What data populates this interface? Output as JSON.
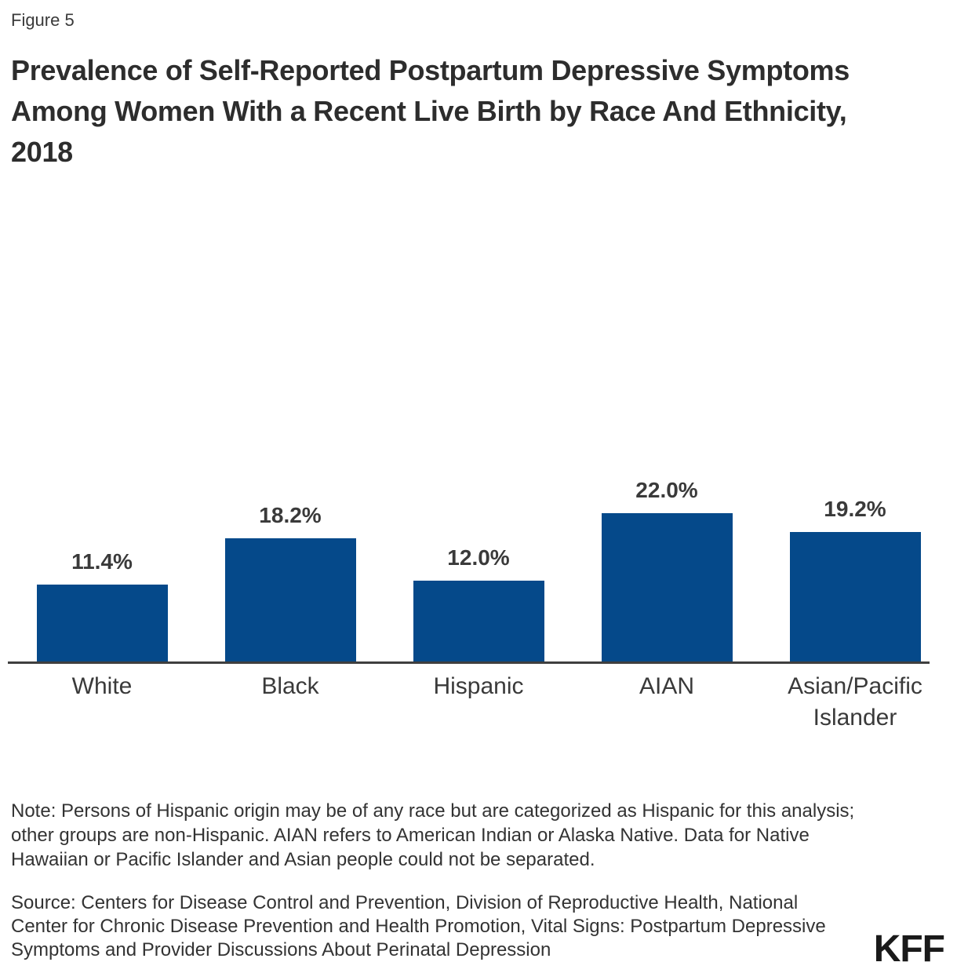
{
  "figure_label": "Figure 5",
  "title": "Prevalence of Self-Reported Postpartum Depressive Symptoms Among Women With a Recent Live Birth by Race And Ethnicity, 2018",
  "chart_data": {
    "type": "bar",
    "title": "Prevalence of Self-Reported Postpartum Depressive Symptoms Among Women With a Recent Live Birth by Race And Ethnicity, 2018",
    "categories": [
      "White",
      "Black",
      "Hispanic",
      "AIAN",
      "Asian/Pacific Islander"
    ],
    "values": [
      11.4,
      18.2,
      12.0,
      22.0,
      19.2
    ],
    "value_labels": [
      "11.4%",
      "18.2%",
      "12.0%",
      "22.0%",
      "19.2%"
    ],
    "xlabel": "",
    "ylabel": "",
    "ylim": [
      0,
      25
    ],
    "grid": false,
    "legend": false,
    "bar_color": "#05498a"
  },
  "note": "Note: Persons of Hispanic origin may be of any race but are categorized as Hispanic for this analysis; other groups are non-Hispanic. AIAN refers to American Indian or Alaska Native. Data for Native Hawaiian or Pacific Islander and Asian people could not be separated.",
  "source": "Source: Centers for Disease Control and Prevention, Division of Reproductive Health, National Center for Chronic Disease Prevention and Health Promotion, Vital Signs: Postpartum Depressive Symptoms and Provider Discussions About Perinatal Depression",
  "logo_text": "KFF",
  "colors": {
    "bar": "#05498a",
    "axis": "#3f3f3f",
    "text": "#333333"
  }
}
